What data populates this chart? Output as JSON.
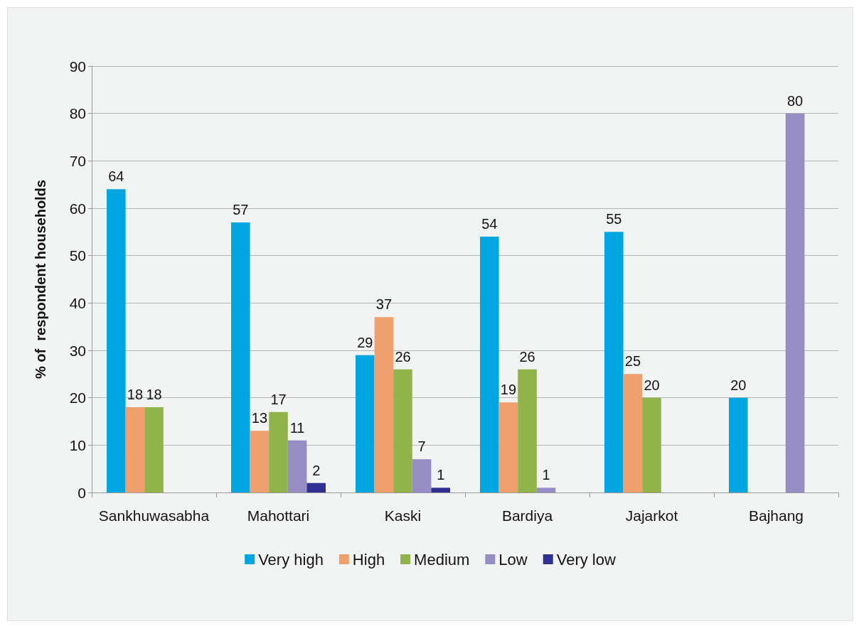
{
  "chart_data": {
    "type": "bar",
    "ylabel": "% of  respondent households",
    "categories": [
      "Sankhuwasabha",
      "Mahottari",
      "Kaski",
      "Bardiya",
      "Jajarkot",
      "Bajhang"
    ],
    "series": [
      {
        "name": "Very high",
        "color": "#00a6e0",
        "values": [
          64,
          57,
          29,
          54,
          55,
          20
        ]
      },
      {
        "name": "High",
        "color": "#f0a06c",
        "values": [
          18,
          13,
          37,
          19,
          25,
          null
        ]
      },
      {
        "name": "Medium",
        "color": "#92b24a",
        "values": [
          18,
          17,
          26,
          26,
          20,
          null
        ]
      },
      {
        "name": "Low",
        "color": "#958dc4",
        "values": [
          null,
          11,
          7,
          1,
          null,
          80
        ]
      },
      {
        "name": "Very low",
        "color": "#2e3192",
        "values": [
          null,
          2,
          1,
          null,
          null,
          null
        ]
      }
    ],
    "ylim": [
      0,
      90
    ],
    "yticks": [
      0,
      10,
      20,
      30,
      40,
      50,
      60,
      70,
      80,
      90
    ],
    "grid": "y",
    "legend": "bottom",
    "data_labels": true
  }
}
